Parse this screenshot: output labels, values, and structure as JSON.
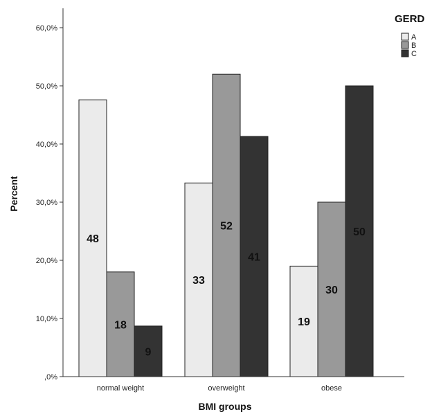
{
  "chart_data": {
    "type": "bar",
    "title": "",
    "xlabel": "BMI groups",
    "ylabel": "Percent",
    "ylim": [
      0,
      62
    ],
    "yticks": [
      0,
      10,
      20,
      30,
      40,
      50,
      60
    ],
    "ytick_labels": [
      ",0%",
      "10,0%",
      "20,0%",
      "30,0%",
      "40,0%",
      "50,0%",
      "60,0%"
    ],
    "categories": [
      "normal weight",
      "overweight",
      "obese"
    ],
    "legend_title": "GERD",
    "legend_position": "top-right",
    "grid": false,
    "series": [
      {
        "name": "A",
        "color": "#ebebeb",
        "values": [
          47.6,
          33.3,
          19.0
        ],
        "labels": [
          "48",
          "33",
          "19"
        ]
      },
      {
        "name": "B",
        "color": "#999999",
        "values": [
          18.0,
          52.0,
          30.0
        ],
        "labels": [
          "18",
          "52",
          "30"
        ]
      },
      {
        "name": "C",
        "color": "#333333",
        "values": [
          8.7,
          41.3,
          50.0
        ],
        "labels": [
          "9",
          "41",
          "50"
        ]
      }
    ]
  }
}
